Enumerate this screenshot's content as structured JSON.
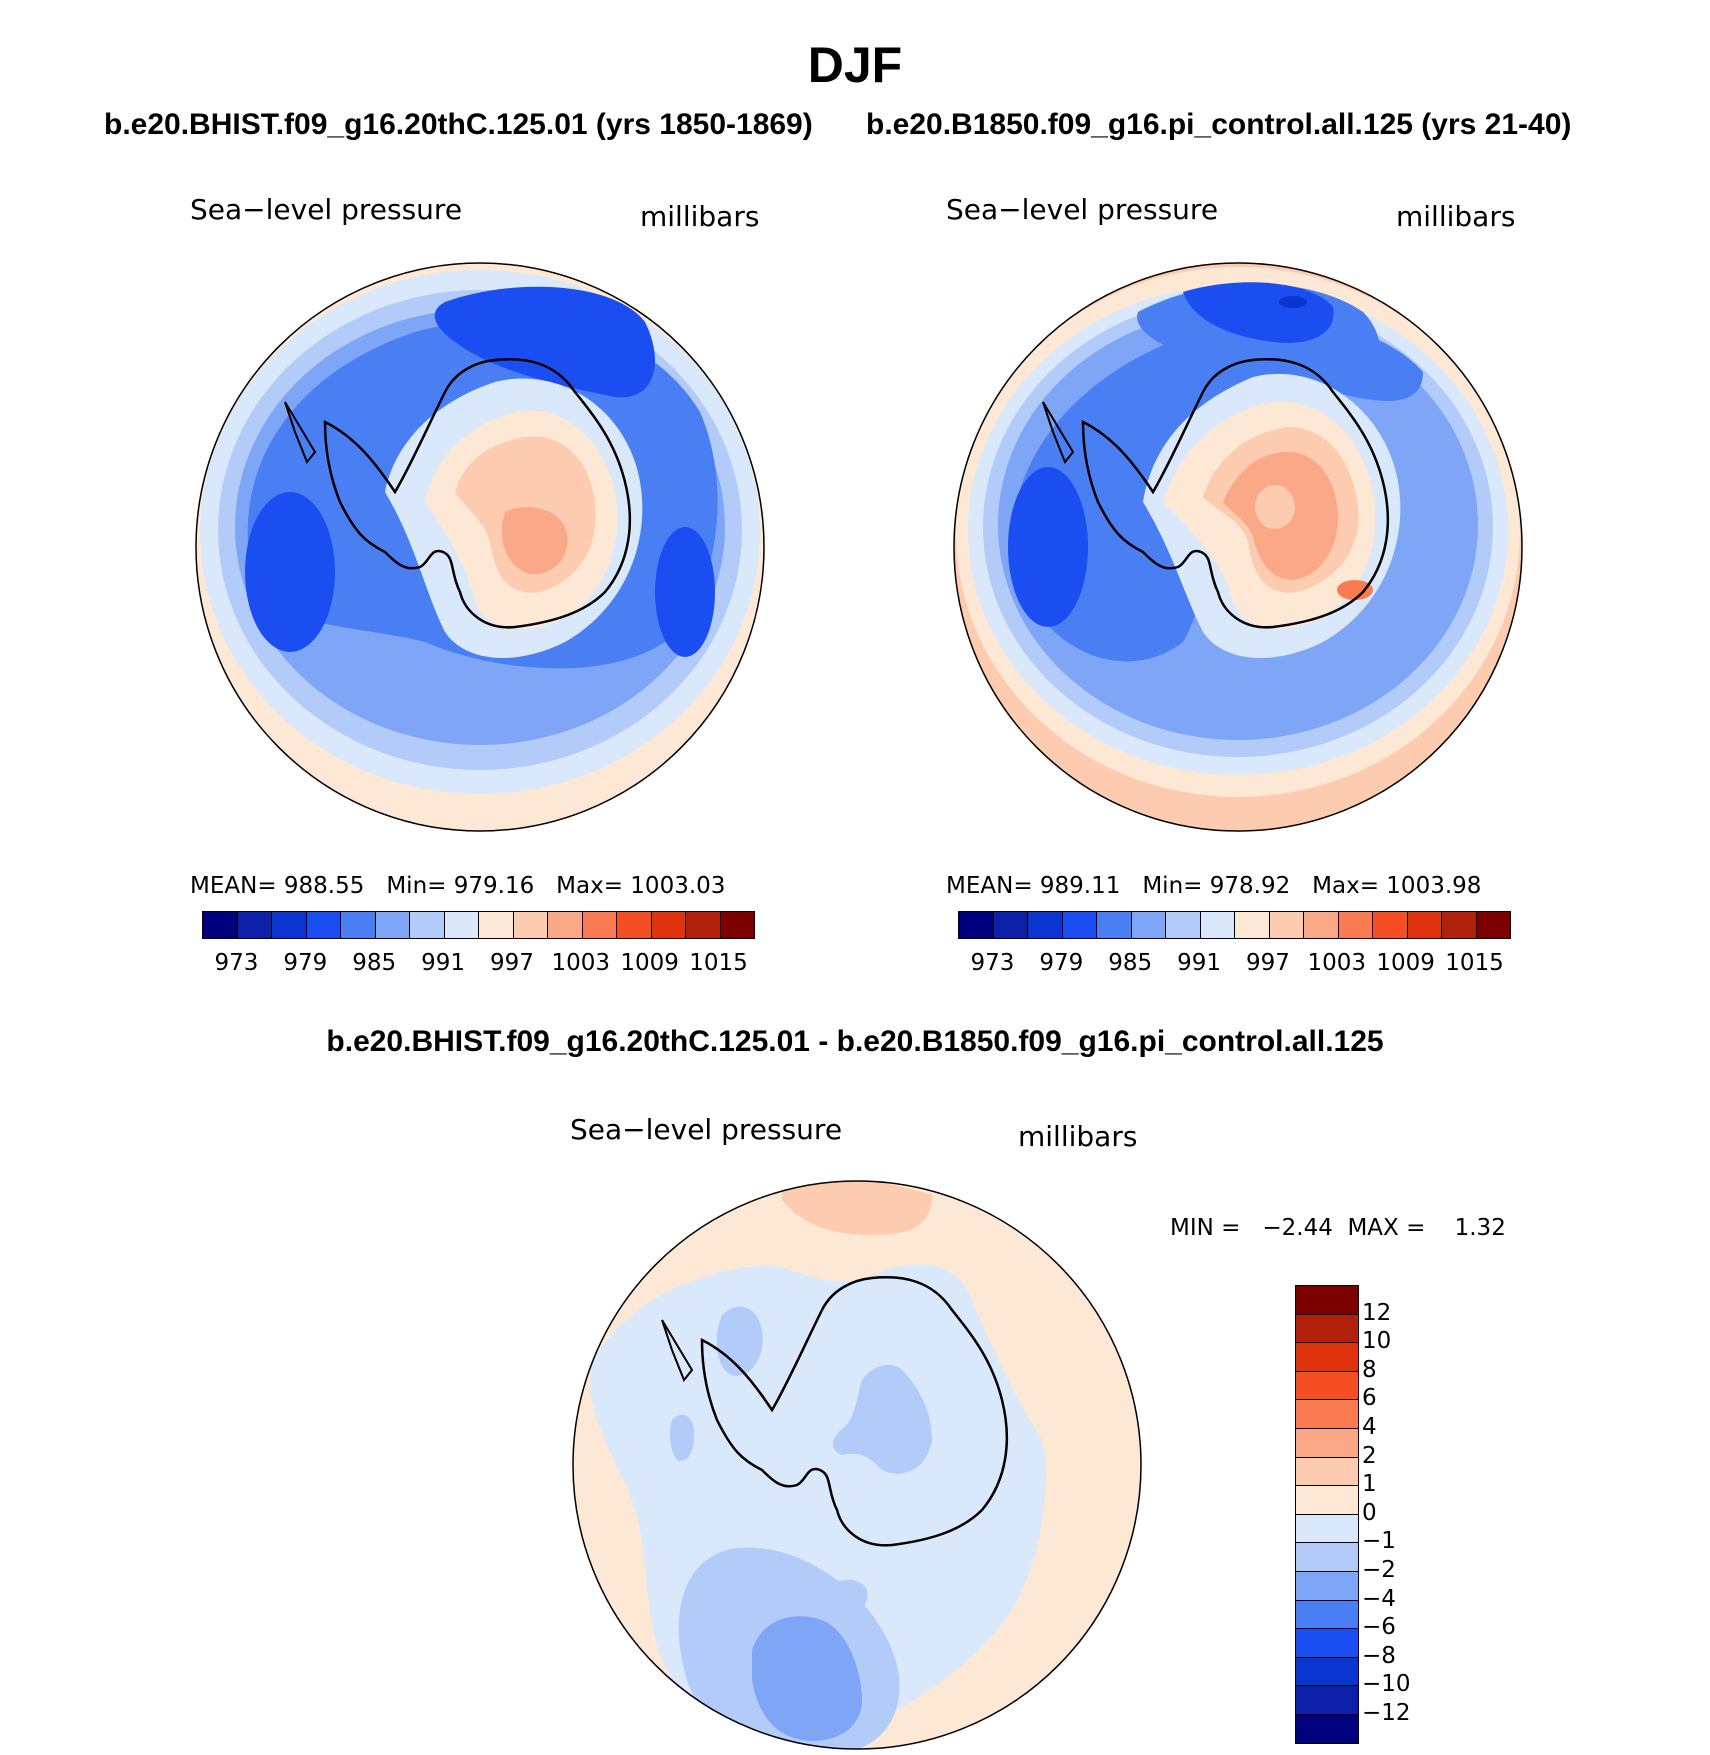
{
  "title": "DJF",
  "panel_left": {
    "subtitle": "b.e20.BHIST.f09_g16.20thC.125.01 (yrs 1850-1869)",
    "variable": "Sea−level pressure",
    "units": "millibars",
    "mean_label": "MEAN=",
    "mean": "988.55",
    "min_label": "Min=",
    "min": "979.16",
    "max_label": "Max=",
    "max": "1003.03"
  },
  "panel_right": {
    "subtitle": "b.e20.B1850.f09_g16.pi_control.all.125 (yrs 21-40)",
    "variable": "Sea−level pressure",
    "units": "millibars",
    "mean_label": "MEAN=",
    "mean": "989.11",
    "min_label": "Min=",
    "min": "978.92",
    "max_label": "Max=",
    "max": "1003.98"
  },
  "panel_diff": {
    "subtitle": "b.e20.BHIST.f09_g16.20thC.125.01 - b.e20.B1850.f09_g16.pi_control.all.125",
    "variable": "Sea−level pressure",
    "units": "millibars",
    "minmax_text": "MIN =   −2.44  MAX =    1.32"
  },
  "abs_colorbar": {
    "colors": [
      "#00007f",
      "#0b1fa8",
      "#0a35d0",
      "#1b4ef0",
      "#4a7ef3",
      "#7ea5f6",
      "#b3cbf8",
      "#d9e8fa",
      "#fde8d6",
      "#fdcbb0",
      "#fba888",
      "#fa7b52",
      "#f54e22",
      "#de330d",
      "#b1200a",
      "#7d0000"
    ],
    "labels": [
      "973",
      "979",
      "985",
      "991",
      "997",
      "1003",
      "1009",
      "1015"
    ]
  },
  "diff_colorbar": {
    "colors_top_to_bottom": [
      "#7d0000",
      "#b1200a",
      "#de330d",
      "#f54e22",
      "#fa7b52",
      "#fba888",
      "#fdcbb0",
      "#fde8d6",
      "#d9e8fa",
      "#b3cbf8",
      "#7ea5f6",
      "#4a7ef3",
      "#1b4ef0",
      "#0a35d0",
      "#0b1fa8",
      "#00007f"
    ],
    "labels_top_to_bottom": [
      "12",
      "10",
      "8",
      "6",
      "4",
      "2",
      "1",
      "0",
      "−1",
      "−2",
      "−4",
      "−6",
      "−8",
      "−10",
      "−12"
    ]
  }
}
